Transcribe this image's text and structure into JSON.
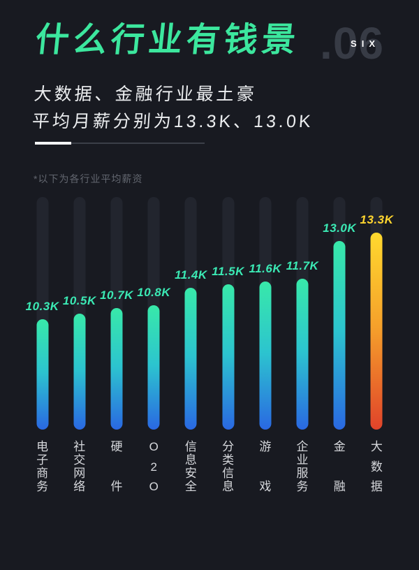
{
  "page": {
    "background_color": "#181a21"
  },
  "header": {
    "title": "什么行业有钱景",
    "title_color": "#3ce79e",
    "index_number": ".06",
    "index_number_color": "#373b45",
    "index_word": "SIX",
    "index_word_color": "#ffffff"
  },
  "subtitle": {
    "line1": "大数据、金融行业最土豪",
    "line2": "平均月薪分别为13.3K、13.0K",
    "color": "#eceef0"
  },
  "divider": {
    "accent_color": "#f3f4f5",
    "line_color": "#3b3f48"
  },
  "note": {
    "text": "*以下为各行业平均薪资",
    "color": "#62666f"
  },
  "chart_data": {
    "type": "bar",
    "title": "以下为各行业平均薪资",
    "unit": "K",
    "categories": [
      "电子商务",
      "社交网络",
      "硬件",
      "O2O",
      "信息安全",
      "分类信息",
      "游戏",
      "企业服务",
      "金融",
      "大数据"
    ],
    "values": [
      10.3,
      10.5,
      10.7,
      10.8,
      11.4,
      11.5,
      11.6,
      11.7,
      13.0,
      13.3
    ],
    "value_labels": [
      "10.3K",
      "10.5K",
      "10.7K",
      "10.8K",
      "11.4K",
      "11.5K",
      "11.6K",
      "11.7K",
      "13.0K",
      "13.3K"
    ],
    "highlight_index": 9,
    "ylim": [
      0,
      14
    ],
    "grid": false,
    "legend": false,
    "orientation": "vertical",
    "track_color": "#22252e",
    "bar_gradient": [
      "#38e9a9",
      "#2cc4cf",
      "#2a68e2"
    ],
    "highlight_gradient": [
      "#ffd92e",
      "#f5a02b",
      "#e0432a"
    ],
    "value_label_color": "#3be9b4",
    "highlight_value_label_color": "#ffd52f",
    "category_label_color": "#d6d8dc"
  }
}
